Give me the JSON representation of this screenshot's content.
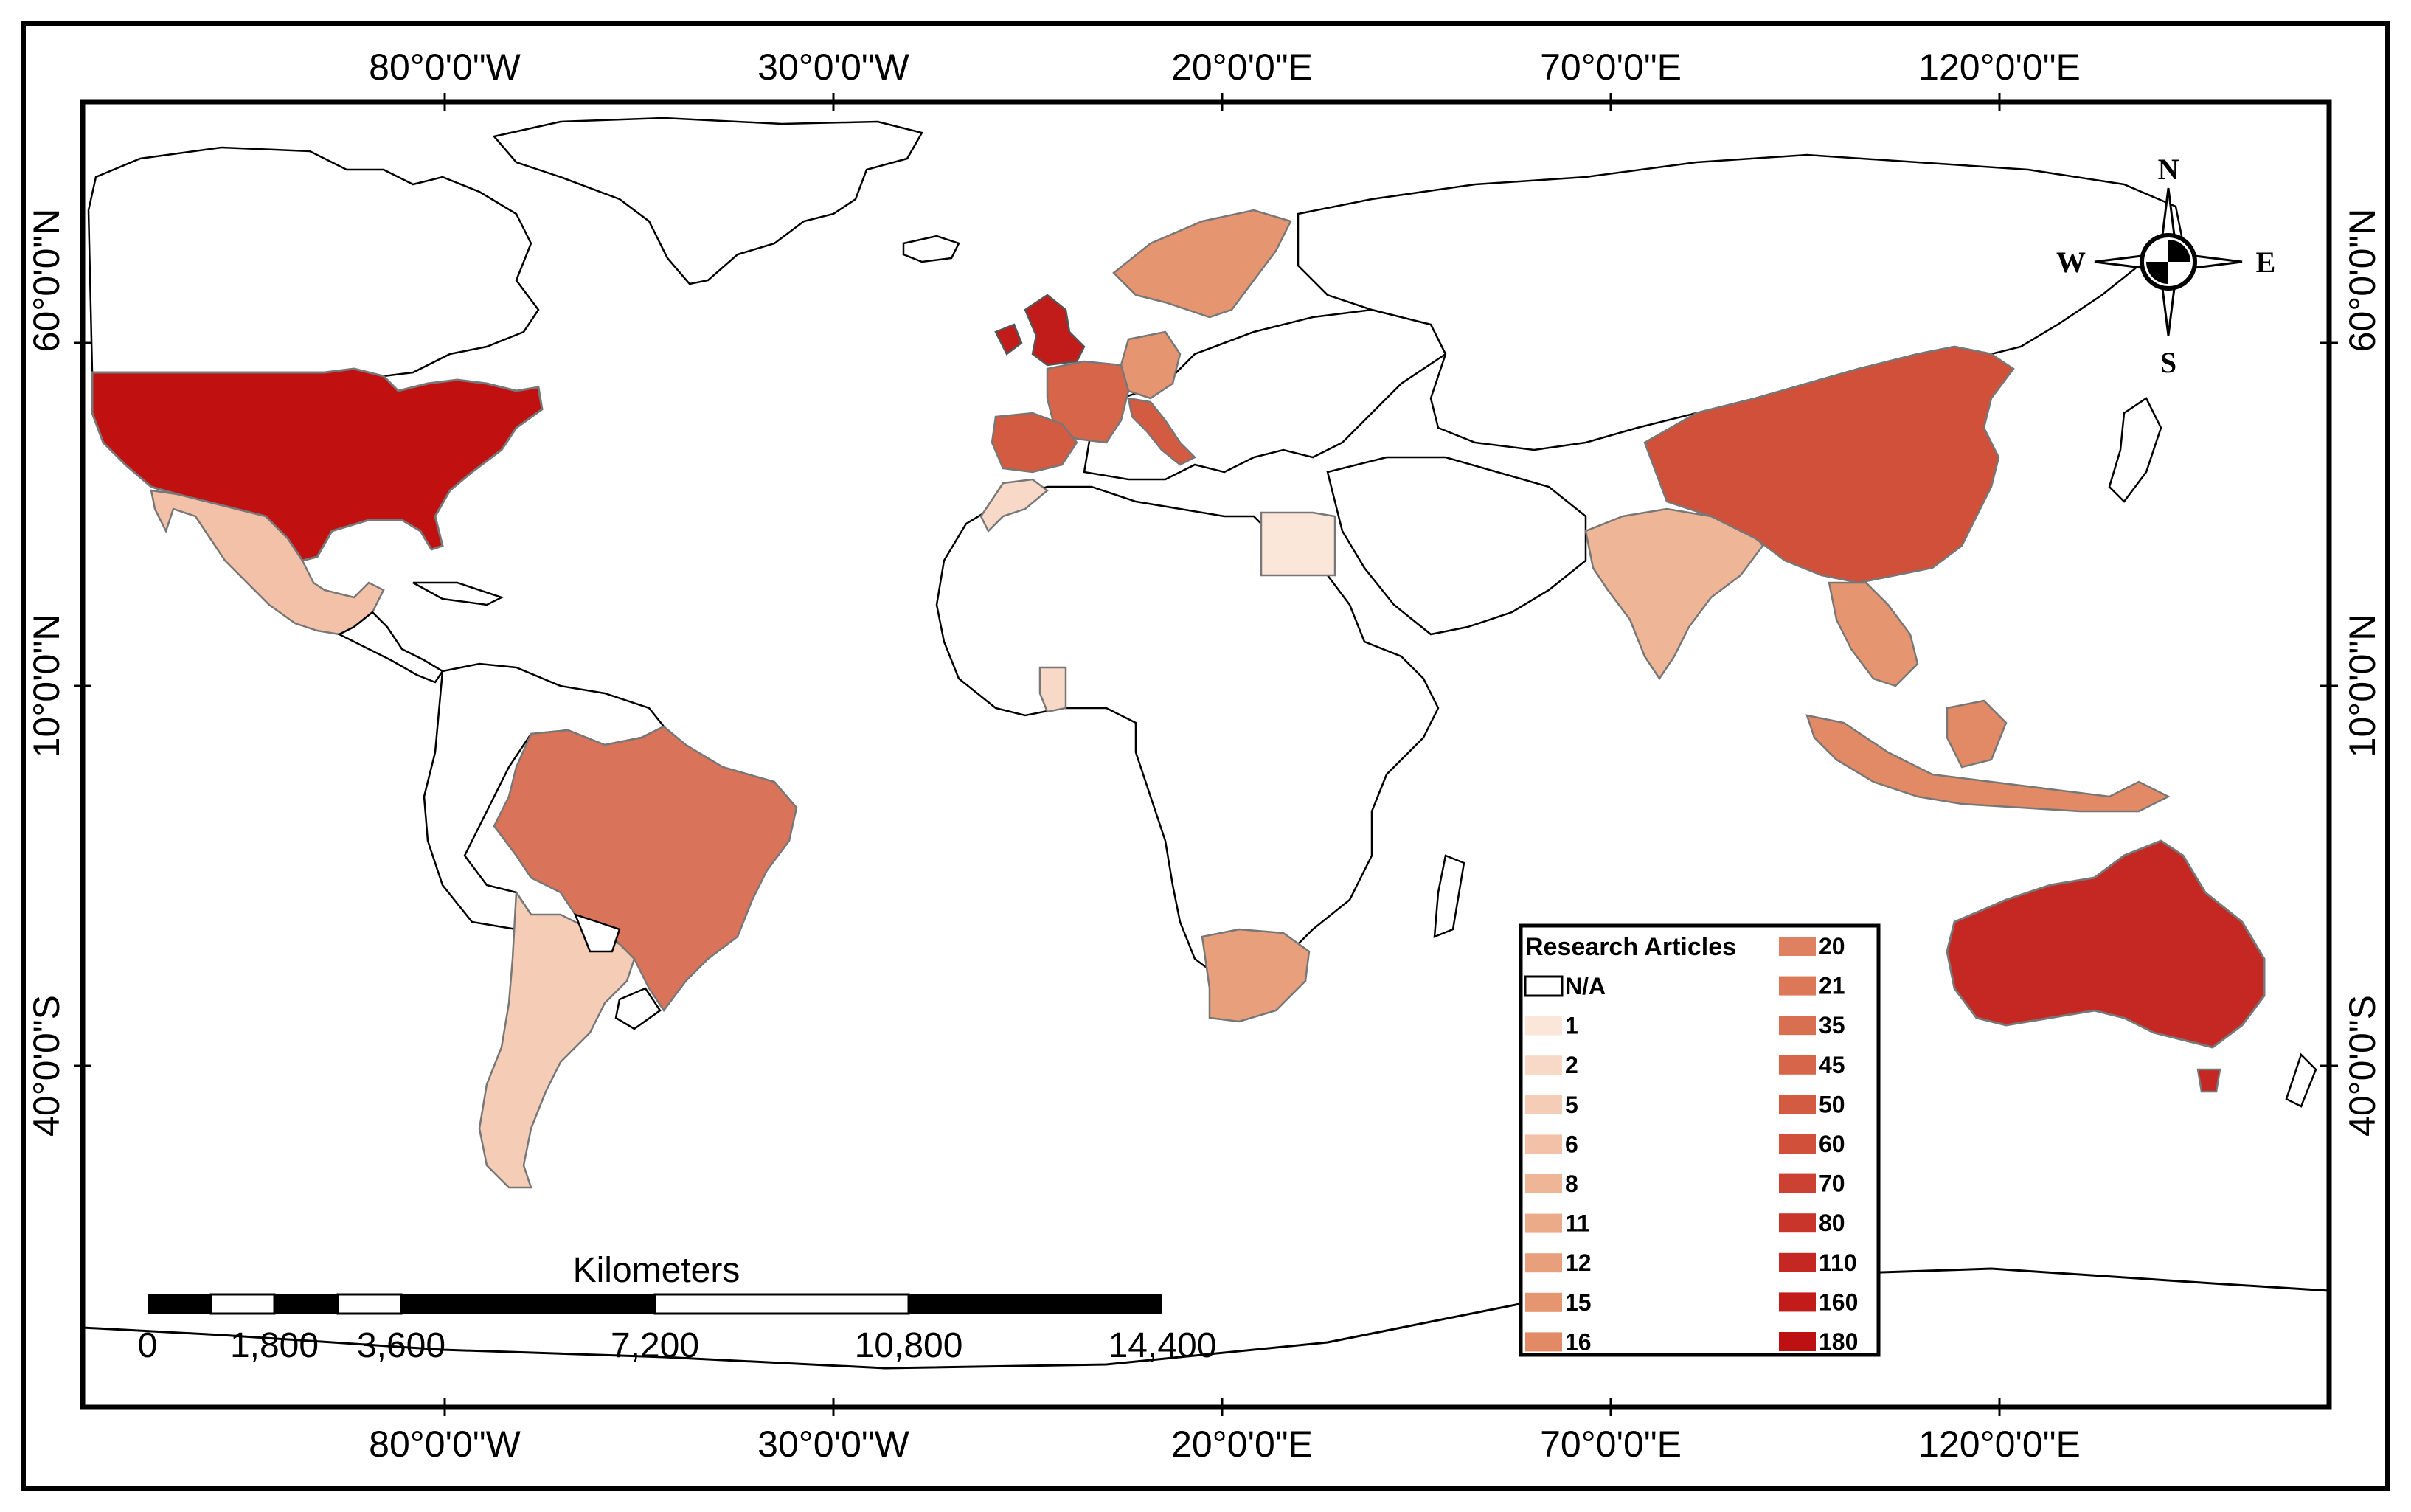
{
  "graticule": {
    "top_labels": [
      "80°0'0\"W",
      "30°0'0\"W",
      "20°0'0\"E",
      "70°0'0\"E",
      "120°0'0\"E"
    ],
    "bottom_labels": [
      "80°0'0\"W",
      "30°0'0\"W",
      "20°0'0\"E",
      "70°0'0\"E",
      "120°0'0\"E"
    ],
    "left_labels": [
      "60°0'0\"N",
      "10°0'0\"N",
      "40°0'0\"S"
    ],
    "right_labels": [
      "60°0'0\"N",
      "10°0'0\"N",
      "40°0'0\"S"
    ]
  },
  "compass": {
    "n": "N",
    "s": "S",
    "e": "E",
    "w": "W"
  },
  "scale_bar": {
    "unit": "Kilometers",
    "ticks": [
      "0",
      "1,800",
      "3,600",
      "7,200",
      "10,800",
      "14,400"
    ]
  },
  "legend": {
    "title": "Research Articles",
    "left_column": [
      {
        "label": "N/A",
        "color": "#ffffff"
      },
      {
        "label": "1",
        "color": "#fbe6da"
      },
      {
        "label": "2",
        "color": "#f8d8c6"
      },
      {
        "label": "5",
        "color": "#f5cdb6"
      },
      {
        "label": "6",
        "color": "#f2c1a7"
      },
      {
        "label": "8",
        "color": "#eeb697"
      },
      {
        "label": "11",
        "color": "#ebab89"
      },
      {
        "label": "12",
        "color": "#e8a07c"
      },
      {
        "label": "15",
        "color": "#e59570"
      },
      {
        "label": "16",
        "color": "#e28a65"
      }
    ],
    "right_column": [
      {
        "label": "20",
        "color": "#df8160"
      },
      {
        "label": "21",
        "color": "#dc7858"
      },
      {
        "label": "35",
        "color": "#d96f51"
      },
      {
        "label": "45",
        "color": "#d6654a"
      },
      {
        "label": "50",
        "color": "#d35b42"
      },
      {
        "label": "60",
        "color": "#d0503a"
      },
      {
        "label": "70",
        "color": "#cc4232"
      },
      {
        "label": "80",
        "color": "#c9352a"
      },
      {
        "label": "110",
        "color": "#c52822"
      },
      {
        "label": "160",
        "color": "#c11c1a"
      },
      {
        "label": "180",
        "color": "#bd1012"
      }
    ]
  },
  "region_colors": {
    "usa": "#c0100f",
    "canada": "#ffffff",
    "mexico": "#f2c1a7",
    "brazil": "#d9735a",
    "argentina": "#f5cdb6",
    "uk": "#c11c1a",
    "france": "#d6654a",
    "spain": "#d35b42",
    "italy": "#d35b42",
    "germany": "#e59570",
    "scandinavia": "#e59570",
    "egypt": "#fbe6da",
    "morocco": "#f8d8c6",
    "ghana": "#f8d8c6",
    "south_africa": "#e8a07c",
    "china": "#d0503a",
    "india": "#eeb697",
    "se_asia": "#e59570",
    "indonesia": "#e28a65",
    "australia": "#c52822"
  }
}
